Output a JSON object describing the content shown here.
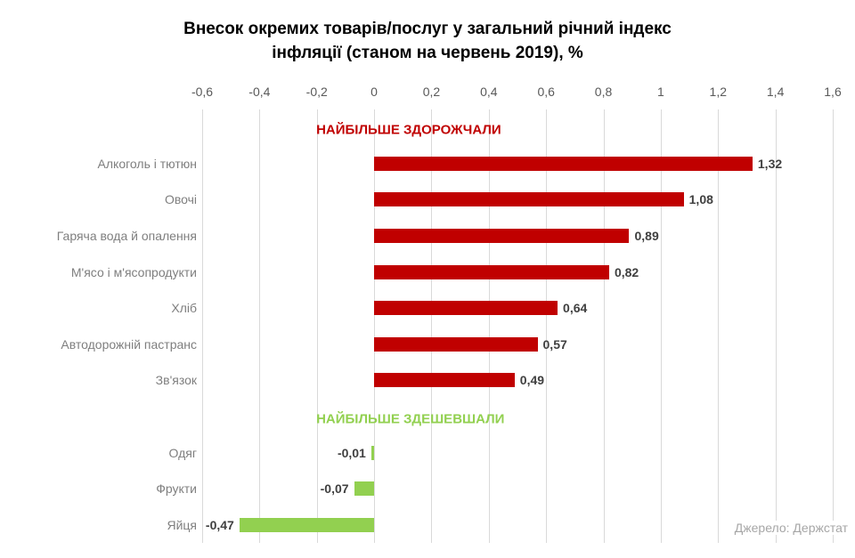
{
  "title": {
    "line1": "Внесок окремих товарів/послуг у загальний річний індекс",
    "line2": "інфляції (станом на червень 2019), %"
  },
  "source": "Джерело: Держстат",
  "colors": {
    "increase": "#c00000",
    "decrease": "#92d050",
    "grid": "#d9d9d9",
    "value_label": "#404040",
    "category_label": "#7f7f7f",
    "axis_label": "#595959",
    "source_label": "#a6a6a6",
    "title": "#000000"
  },
  "chart_data": {
    "type": "bar",
    "orientation": "horizontal",
    "title": "Внесок окремих товарів/послуг у загальний річний індекс інфляції (станом на червень 2019), %",
    "xlabel": "",
    "ylabel": "",
    "xlim": [
      -0.6,
      1.6
    ],
    "grid": true,
    "axis_position": "top",
    "x_ticks": [
      "-0,6",
      "-0,4",
      "-0,2",
      "0",
      "0,2",
      "0,4",
      "0,6",
      "0,8",
      "1",
      "1,2",
      "1,4",
      "1,6"
    ],
    "x_tick_values": [
      -0.6,
      -0.4,
      -0.2,
      0,
      0.2,
      0.4,
      0.6,
      0.8,
      1,
      1.2,
      1.4,
      1.6
    ],
    "categories": [
      "Алкоголь і тютюн",
      "Овочі",
      "Гаряча вода й опалення",
      "М'ясо і м'ясопродукти",
      "Хліб",
      "Автодорожній пастранс",
      "Зв'язок",
      "Одяг",
      "Фрукти",
      "Яйця"
    ],
    "values": [
      1.32,
      1.08,
      0.89,
      0.82,
      0.64,
      0.57,
      0.49,
      -0.01,
      -0.07,
      -0.47
    ],
    "rows": [
      {
        "type": "section",
        "label": "НАЙБІЛЬШЕ ЗДОРОЖЧАЛИ",
        "series": "increase"
      },
      {
        "type": "bar",
        "category": "Алкоголь і тютюн",
        "value": 1.32,
        "label": "1,32",
        "series": "increase"
      },
      {
        "type": "bar",
        "category": "Овочі",
        "value": 1.08,
        "label": "1,08",
        "series": "increase"
      },
      {
        "type": "bar",
        "category": "Гаряча вода й опалення",
        "value": 0.89,
        "label": "0,89",
        "series": "increase"
      },
      {
        "type": "bar",
        "category": "М'ясо і м'ясопродукти",
        "value": 0.82,
        "label": "0,82",
        "series": "increase"
      },
      {
        "type": "bar",
        "category": "Хліб",
        "value": 0.64,
        "label": "0,64",
        "series": "increase"
      },
      {
        "type": "bar",
        "category": "Автодорожній пастранс",
        "value": 0.57,
        "label": "0,57",
        "series": "increase"
      },
      {
        "type": "bar",
        "category": "Зв'язок",
        "value": 0.49,
        "label": "0,49",
        "series": "increase"
      },
      {
        "type": "section",
        "label": "НАЙБІЛЬШЕ ЗДЕШЕВШАЛИ",
        "series": "decrease"
      },
      {
        "type": "bar",
        "category": "Одяг",
        "value": -0.01,
        "label": "-0,01",
        "series": "decrease"
      },
      {
        "type": "bar",
        "category": "Фрукти",
        "value": -0.07,
        "label": "-0,07",
        "series": "decrease"
      },
      {
        "type": "bar",
        "category": "Яйця",
        "value": -0.47,
        "label": "-0,47",
        "series": "decrease"
      }
    ]
  }
}
